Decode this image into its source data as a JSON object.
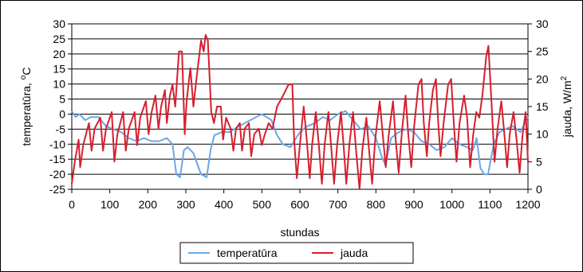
{
  "chart_data": {
    "type": "line",
    "xlabel": "stundas",
    "ylabel_left": {
      "main": "temperatūra, ",
      "sup": "o",
      "tail": "C"
    },
    "ylabel_right": {
      "main": "jauda, W/m",
      "sup": "2",
      "tail": ""
    },
    "xlim": [
      0,
      1200
    ],
    "xticks": [
      0,
      100,
      200,
      300,
      400,
      500,
      600,
      700,
      800,
      900,
      1000,
      1100,
      1200
    ],
    "ylim_left": [
      -25,
      30
    ],
    "yticks_left": [
      -25,
      -20,
      -15,
      -10,
      -5,
      0,
      5,
      10,
      15,
      20,
      25,
      30
    ],
    "ylim_right": [
      0,
      30
    ],
    "yticks_right": [
      0,
      5,
      10,
      15,
      20,
      25,
      30
    ],
    "grid": true,
    "legend_position": "bottom",
    "series": [
      {
        "name": "temperatūra",
        "axis": "left",
        "color": "#6aa7e8",
        "points": [
          [
            0,
            1
          ],
          [
            10,
            -1
          ],
          [
            20,
            0
          ],
          [
            35,
            -2
          ],
          [
            50,
            -1
          ],
          [
            70,
            -1
          ],
          [
            90,
            -4
          ],
          [
            110,
            -5
          ],
          [
            130,
            -6
          ],
          [
            150,
            -8
          ],
          [
            170,
            -9
          ],
          [
            190,
            -8
          ],
          [
            210,
            -9
          ],
          [
            230,
            -9
          ],
          [
            250,
            -8
          ],
          [
            265,
            -10
          ],
          [
            275,
            -20
          ],
          [
            285,
            -21
          ],
          [
            295,
            -12
          ],
          [
            305,
            -11
          ],
          [
            320,
            -13
          ],
          [
            340,
            -20
          ],
          [
            355,
            -21
          ],
          [
            365,
            -12
          ],
          [
            375,
            -7
          ],
          [
            395,
            -6
          ],
          [
            415,
            -6
          ],
          [
            440,
            -4
          ],
          [
            470,
            -2
          ],
          [
            500,
            0
          ],
          [
            525,
            -2
          ],
          [
            540,
            -7
          ],
          [
            555,
            -10
          ],
          [
            575,
            -11
          ],
          [
            600,
            -6
          ],
          [
            620,
            -4
          ],
          [
            640,
            -3
          ],
          [
            660,
            -1
          ],
          [
            680,
            -2
          ],
          [
            700,
            0
          ],
          [
            720,
            1
          ],
          [
            740,
            -2
          ],
          [
            760,
            -5
          ],
          [
            780,
            -4
          ],
          [
            800,
            -8
          ],
          [
            815,
            -14
          ],
          [
            825,
            -17
          ],
          [
            840,
            -8
          ],
          [
            860,
            -6
          ],
          [
            880,
            -5
          ],
          [
            900,
            -6
          ],
          [
            920,
            -9
          ],
          [
            940,
            -10
          ],
          [
            960,
            -12
          ],
          [
            980,
            -11
          ],
          [
            1000,
            -8
          ],
          [
            1020,
            -10
          ],
          [
            1040,
            -11
          ],
          [
            1055,
            -12
          ],
          [
            1065,
            -8
          ],
          [
            1075,
            -18
          ],
          [
            1085,
            -20
          ],
          [
            1095,
            -20
          ],
          [
            1110,
            -10
          ],
          [
            1125,
            -6
          ],
          [
            1140,
            -5
          ],
          [
            1160,
            -4
          ],
          [
            1180,
            -6
          ],
          [
            1200,
            -1
          ]
        ]
      },
      {
        "name": "jauda",
        "axis": "right",
        "color": "#d81e2e",
        "points": [
          [
            0,
            1
          ],
          [
            8,
            5
          ],
          [
            18,
            9
          ],
          [
            22,
            4
          ],
          [
            30,
            8
          ],
          [
            45,
            12
          ],
          [
            52,
            7
          ],
          [
            60,
            11
          ],
          [
            75,
            13
          ],
          [
            82,
            7
          ],
          [
            90,
            11
          ],
          [
            105,
            14
          ],
          [
            112,
            5
          ],
          [
            120,
            10
          ],
          [
            135,
            14
          ],
          [
            142,
            7
          ],
          [
            150,
            11
          ],
          [
            165,
            14
          ],
          [
            172,
            8
          ],
          [
            180,
            13
          ],
          [
            195,
            16
          ],
          [
            202,
            10
          ],
          [
            210,
            14
          ],
          [
            220,
            17
          ],
          [
            228,
            11
          ],
          [
            235,
            15
          ],
          [
            245,
            18
          ],
          [
            250,
            12
          ],
          [
            258,
            17
          ],
          [
            265,
            19
          ],
          [
            272,
            15
          ],
          [
            282,
            25
          ],
          [
            290,
            25
          ],
          [
            297,
            10
          ],
          [
            302,
            16
          ],
          [
            312,
            22
          ],
          [
            320,
            15
          ],
          [
            328,
            20
          ],
          [
            340,
            27
          ],
          [
            347,
            25
          ],
          [
            352,
            28
          ],
          [
            358,
            27
          ],
          [
            367,
            14
          ],
          [
            374,
            12
          ],
          [
            382,
            15
          ],
          [
            392,
            15
          ],
          [
            398,
            9
          ],
          [
            406,
            13
          ],
          [
            418,
            11
          ],
          [
            425,
            7
          ],
          [
            432,
            11
          ],
          [
            442,
            12
          ],
          [
            448,
            7
          ],
          [
            455,
            11
          ],
          [
            466,
            12
          ],
          [
            472,
            6
          ],
          [
            480,
            10
          ],
          [
            492,
            11
          ],
          [
            500,
            8
          ],
          [
            508,
            10
          ],
          [
            518,
            12
          ],
          [
            528,
            11
          ],
          [
            540,
            15
          ],
          [
            556,
            17
          ],
          [
            570,
            19
          ],
          [
            580,
            19
          ],
          [
            585,
            9
          ],
          [
            592,
            2
          ],
          [
            600,
            8
          ],
          [
            610,
            15
          ],
          [
            618,
            9
          ],
          [
            626,
            2
          ],
          [
            632,
            8
          ],
          [
            642,
            14
          ],
          [
            650,
            8
          ],
          [
            658,
            1
          ],
          [
            665,
            8
          ],
          [
            675,
            14
          ],
          [
            682,
            8
          ],
          [
            690,
            1
          ],
          [
            698,
            8
          ],
          [
            708,
            14
          ],
          [
            715,
            8
          ],
          [
            722,
            1
          ],
          [
            730,
            8
          ],
          [
            740,
            14
          ],
          [
            748,
            7
          ],
          [
            757,
            0
          ],
          [
            764,
            7
          ],
          [
            775,
            13
          ],
          [
            782,
            7
          ],
          [
            790,
            1
          ],
          [
            798,
            9
          ],
          [
            810,
            16
          ],
          [
            818,
            10
          ],
          [
            826,
            4
          ],
          [
            834,
            10
          ],
          [
            845,
            16
          ],
          [
            852,
            9
          ],
          [
            860,
            3
          ],
          [
            868,
            10
          ],
          [
            878,
            17
          ],
          [
            885,
            10
          ],
          [
            893,
            4
          ],
          [
            900,
            11
          ],
          [
            912,
            19
          ],
          [
            920,
            20
          ],
          [
            926,
            12
          ],
          [
            934,
            6
          ],
          [
            940,
            12
          ],
          [
            950,
            18
          ],
          [
            958,
            20
          ],
          [
            964,
            12
          ],
          [
            970,
            6
          ],
          [
            978,
            12
          ],
          [
            990,
            19
          ],
          [
            998,
            20
          ],
          [
            1005,
            12
          ],
          [
            1012,
            5
          ],
          [
            1020,
            12
          ],
          [
            1032,
            17
          ],
          [
            1040,
            13
          ],
          [
            1048,
            4
          ],
          [
            1056,
            10
          ],
          [
            1064,
            14
          ],
          [
            1072,
            13
          ],
          [
            1080,
            17
          ],
          [
            1090,
            24
          ],
          [
            1096,
            26
          ],
          [
            1104,
            16
          ],
          [
            1112,
            5
          ],
          [
            1120,
            11
          ],
          [
            1130,
            16
          ],
          [
            1138,
            10
          ],
          [
            1145,
            4
          ],
          [
            1152,
            10
          ],
          [
            1162,
            14
          ],
          [
            1170,
            9
          ],
          [
            1178,
            3
          ],
          [
            1186,
            10
          ],
          [
            1194,
            14
          ],
          [
            1200,
            5
          ]
        ]
      }
    ]
  }
}
